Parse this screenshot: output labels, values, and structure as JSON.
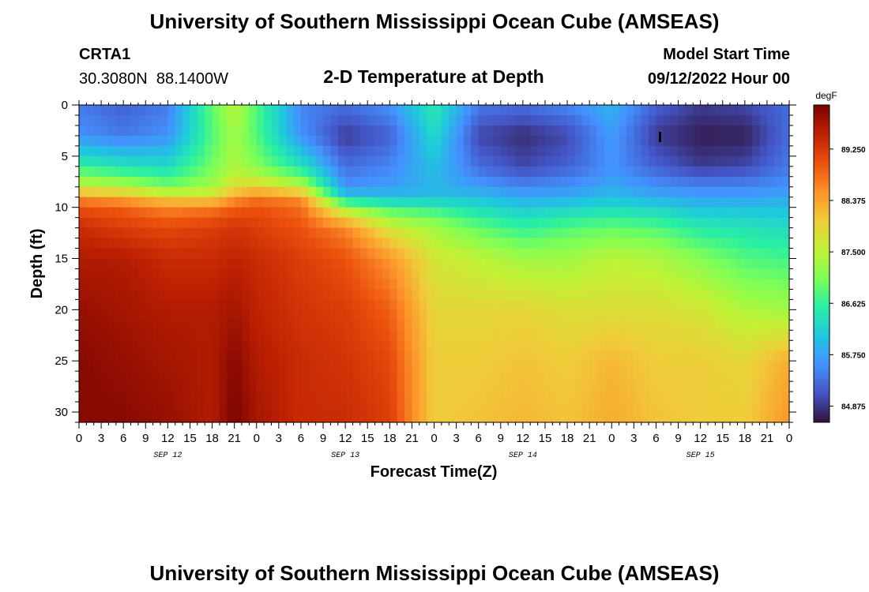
{
  "header": {
    "title": "University of Southern Mississippi Ocean Cube (AMSEAS)",
    "station": "CRTA1",
    "location": "30.3080N  88.1400W",
    "plot_title": "2-D Temperature at Depth",
    "start_label": "Model Start Time",
    "start_value": "09/12/2022 Hour 00"
  },
  "footer": {
    "title": "University of Southern Mississippi Ocean Cube (AMSEAS)"
  },
  "chart_data": {
    "type": "heatmap",
    "title": "2-D Temperature at Depth",
    "xlabel": "Forecast Time(Z)",
    "ylabel": "Depth (ft)",
    "x_range_hours": [
      0,
      96
    ],
    "y_range_ft": [
      0,
      31
    ],
    "y_inverted": true,
    "x_tick_step_hours": 3,
    "x_tick_labels": [
      "0",
      "3",
      "6",
      "9",
      "12",
      "15",
      "18",
      "21",
      "0",
      "3",
      "6",
      "9",
      "12",
      "15",
      "18",
      "21",
      "0",
      "3",
      "6",
      "9",
      "12",
      "15",
      "18",
      "21",
      "0",
      "3",
      "6",
      "9",
      "12",
      "15",
      "18",
      "21",
      "0"
    ],
    "y_ticks": [
      0,
      5,
      10,
      15,
      20,
      25,
      30
    ],
    "date_labels": [
      {
        "label": "SEP 12",
        "hour": 12
      },
      {
        "label": "SEP 13",
        "hour": 36
      },
      {
        "label": "SEP 14",
        "hour": 60
      },
      {
        "label": "SEP 15",
        "hour": 84
      }
    ],
    "colorbar": {
      "unit": "degF",
      "min": 84.6,
      "max": 90.0,
      "tick_values": [
        84.875,
        85.75,
        86.625,
        87.5,
        88.375,
        89.25
      ],
      "tick_labels": [
        "84.875",
        "85.750",
        "86.625",
        "87.500",
        "88.375",
        "89.250"
      ],
      "colors": [
        "#30123b",
        "#4454c4",
        "#4490fe",
        "#1fc8de",
        "#29efa2",
        "#7eff55",
        "#c3f134",
        "#f1ca3a",
        "#fe922a",
        "#ea4f0d",
        "#be2102",
        "#7a0403"
      ]
    },
    "time_columns_hours": [
      0,
      6,
      12,
      18,
      21,
      24,
      30,
      36,
      42,
      48,
      54,
      60,
      66,
      72,
      78,
      84,
      90,
      96
    ],
    "depth_rows_ft": [
      0,
      3,
      6,
      8,
      9,
      10,
      12,
      15,
      20,
      25,
      31
    ],
    "values_degF": [
      [
        85.4,
        85.2,
        85.4,
        86.9,
        87.5,
        86.8,
        85.5,
        85.3,
        85.6,
        86.5,
        85.4,
        85.3,
        85.5,
        85.9,
        85.2,
        84.9,
        85.0,
        85.3
      ],
      [
        85.6,
        85.4,
        85.6,
        86.8,
        87.3,
        86.8,
        85.6,
        84.9,
        85.2,
        86.3,
        85.0,
        84.8,
        85.0,
        85.7,
        84.9,
        84.7,
        84.7,
        85.3
      ],
      [
        86.6,
        86.4,
        86.3,
        87.0,
        87.4,
        87.1,
        86.4,
        85.3,
        85.5,
        86.0,
        85.3,
        85.0,
        85.2,
        85.6,
        85.2,
        84.9,
        85.0,
        85.4
      ],
      [
        87.6,
        87.4,
        87.0,
        87.3,
        87.8,
        87.9,
        87.5,
        85.6,
        85.7,
        85.9,
        85.7,
        85.5,
        85.6,
        85.8,
        85.6,
        85.5,
        85.5,
        85.6
      ],
      [
        88.5,
        88.3,
        87.9,
        87.8,
        88.4,
        88.7,
        88.5,
        86.1,
        86.0,
        86.0,
        86.0,
        85.8,
        85.8,
        86.0,
        85.8,
        85.7,
        85.7,
        85.8
      ],
      [
        89.0,
        88.9,
        88.6,
        88.7,
        88.9,
        89.0,
        88.8,
        87.3,
        86.7,
        86.6,
        86.3,
        86.1,
        86.2,
        86.3,
        86.2,
        86.0,
        86.0,
        86.0
      ],
      [
        89.4,
        89.2,
        89.1,
        89.2,
        89.3,
        89.2,
        89.0,
        88.6,
        87.7,
        87.3,
        86.9,
        86.6,
        86.8,
        86.9,
        86.8,
        86.5,
        86.4,
        86.3
      ],
      [
        89.6,
        89.6,
        89.4,
        89.4,
        89.5,
        89.4,
        89.2,
        89.0,
        88.5,
        87.7,
        87.5,
        87.3,
        87.3,
        87.5,
        87.4,
        87.1,
        86.8,
        86.7
      ],
      [
        89.8,
        89.7,
        89.6,
        89.6,
        89.7,
        89.5,
        89.3,
        89.2,
        88.9,
        87.9,
        87.9,
        87.9,
        87.8,
        87.8,
        87.8,
        87.7,
        87.4,
        87.3
      ],
      [
        89.9,
        89.8,
        89.7,
        89.6,
        89.9,
        89.6,
        89.4,
        89.3,
        89.1,
        88.0,
        88.0,
        88.1,
        88.0,
        88.2,
        88.0,
        88.0,
        87.9,
        88.3
      ],
      [
        89.9,
        89.9,
        89.8,
        89.6,
        90.0,
        89.7,
        89.4,
        89.4,
        89.2,
        88.0,
        88.1,
        88.2,
        88.1,
        88.3,
        88.1,
        88.0,
        88.0,
        88.5
      ]
    ]
  }
}
